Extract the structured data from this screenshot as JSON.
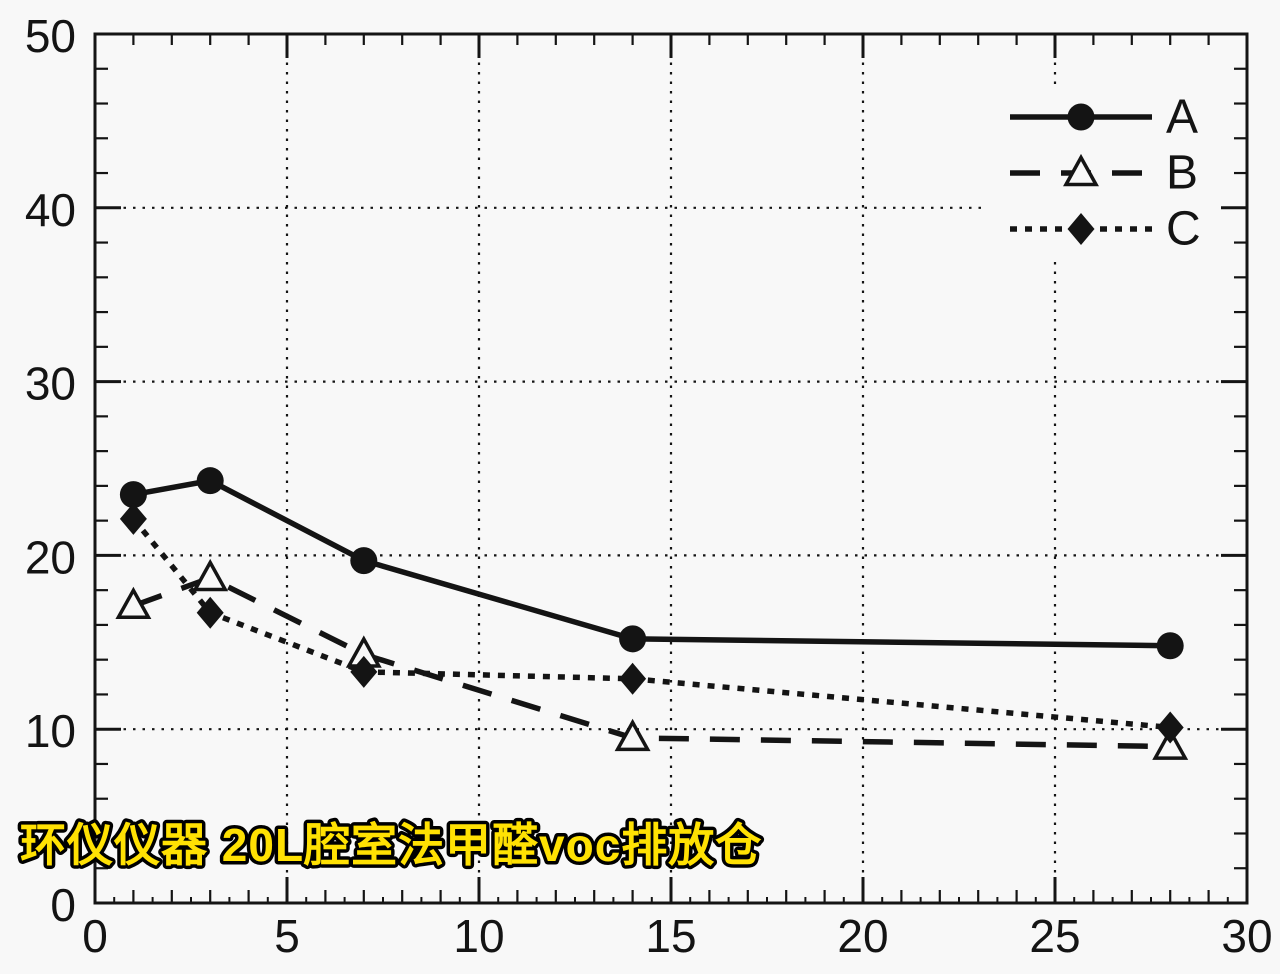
{
  "page": {
    "background": "#f8f8f8"
  },
  "watermark": {
    "text": "环仪仪器 20L腔室法甲醛voc排放仓",
    "fill": "#ffe103",
    "outline": "#000000"
  },
  "chart_data": {
    "type": "line",
    "title": "",
    "xlabel": "",
    "ylabel": "",
    "xlim": [
      0,
      30
    ],
    "ylim": [
      0,
      50
    ],
    "x_major_ticks": [
      0,
      5,
      10,
      15,
      20,
      25,
      30
    ],
    "y_major_ticks": [
      0,
      10,
      20,
      30,
      40,
      50
    ],
    "x_minor_tick_step": 1,
    "x_half_tick_step": 0.5,
    "y_minor_tick_step": 2,
    "grid": "dotted-lines-at-major-ticks",
    "legend_position": "top-right-inside",
    "axis_color": "#141414",
    "line_color": "#141414",
    "series": [
      {
        "name": "A",
        "line_style": "solid",
        "marker": "filled-circle",
        "x": [
          1,
          3,
          7,
          14,
          28
        ],
        "y": [
          23.5,
          24.3,
          19.7,
          15.2,
          14.8
        ]
      },
      {
        "name": "B",
        "line_style": "long-dash",
        "marker": "open-triangle",
        "x": [
          1,
          3,
          7,
          14,
          28
        ],
        "y": [
          17.1,
          18.7,
          14.3,
          9.5,
          9.0
        ]
      },
      {
        "name": "C",
        "line_style": "dotted",
        "marker": "filled-diamond",
        "x": [
          1,
          3,
          7,
          14,
          28
        ],
        "y": [
          22.1,
          16.7,
          13.3,
          12.9,
          10.1
        ]
      }
    ]
  }
}
